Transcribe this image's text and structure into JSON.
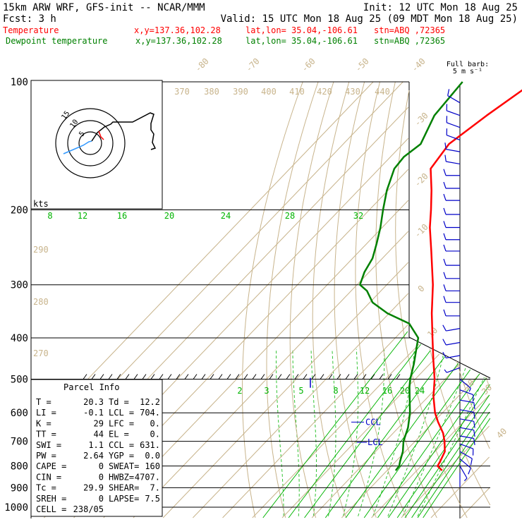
{
  "header": {
    "model": "15km ARW WRF, GFS-init  -- NCAR/MMM",
    "init": "Init: 12 UTC Mon 18 Aug 25",
    "fcst_label": "Fcst:   3 h",
    "valid": "Valid: 15 UTC Mon 18 Aug 25 (09 MDT Mon 18 Aug 25)",
    "temp_line": {
      "name": "Temperature",
      "xy": "x,y=137.36,102.28",
      "latlon": "lat,lon= 35.04,-106.61",
      "stn": "stn=ABQ ,72365"
    },
    "dew_line": {
      "name": "Dewpoint temperature",
      "xy": "x,y=137.36,102.28",
      "latlon": "lat,lon= 35.04,-106.61",
      "stn": "stn=ABQ ,72365"
    }
  },
  "barb_legend": {
    "title": "Full barb:",
    "value": "5 m s⁻¹"
  },
  "hodograph": {
    "units": "kts",
    "ring_labels": [
      "15",
      "10",
      "5"
    ]
  },
  "parcel_info": {
    "title": "Parcel Info",
    "rows": [
      [
        "T    =",
        "20.3",
        "Td =",
        "12.2"
      ],
      [
        "LI   =",
        "-0.1",
        "LCL =",
        "704."
      ],
      [
        "K    =",
        "29",
        "LFC =",
        "0."
      ],
      [
        "TT   =",
        "44",
        "EL  =",
        "0."
      ],
      [
        "SWI  =",
        "1.1",
        "CCL =",
        "631."
      ],
      [
        "PW   =",
        "2.64",
        "YGP =",
        "0.0"
      ],
      [
        "CAPE =",
        "0",
        "SWEAT=",
        "160"
      ],
      [
        "CIN  =",
        "0",
        "HWBZ=",
        "4707."
      ],
      [
        "Tc   =",
        "29.9",
        "SHEAR=",
        "7."
      ],
      [
        "SREH =",
        "0",
        "LAPSE=",
        "7.5"
      ],
      [
        "CELL =",
        "238/05",
        "",
        ""
      ]
    ]
  },
  "colors": {
    "temperature": "#ff0000",
    "dewpoint": "#008000",
    "isotherm": "#c8b48c",
    "mixing_ratio": "#00b400",
    "wind": "#0000c8",
    "grid": "#000000"
  },
  "chart_data": {
    "type": "line",
    "title": "",
    "ylabel": "",
    "xlabel": "",
    "y_scale": "log-pressure",
    "pressure_levels": [
      100,
      200,
      300,
      400,
      500,
      600,
      700,
      800,
      900,
      1000
    ],
    "isotherm_labels": [
      "-80",
      "-70",
      "-60",
      "-50",
      "-40",
      "-30",
      "-20",
      "-10",
      "0",
      "10",
      "20",
      "30",
      "40"
    ],
    "theta_labels_top": [
      "370",
      "380",
      "390",
      "400",
      "410",
      "420",
      "430",
      "440"
    ],
    "theta_labels_left": [
      "290",
      "280",
      "270"
    ],
    "mixing_ratio_labels_200": [
      "8",
      "12",
      "16",
      "20",
      "24",
      "28",
      "32"
    ],
    "mixing_ratio_labels_550": [
      "2",
      "3",
      "5",
      "8",
      "12",
      "16",
      "20",
      "24"
    ],
    "level_labels": [
      "CCL",
      "LCL"
    ],
    "series": [
      {
        "name": "Temperature",
        "p": [
          820,
          800,
          780,
          740,
          700,
          670,
          630,
          600,
          550,
          500,
          450,
          400,
          350,
          300,
          250,
          220,
          200,
          180,
          160,
          140,
          120,
          100
        ],
        "t": [
          28.5,
          25.5,
          24.9,
          23.3,
          19.9,
          16.8,
          11.4,
          7.5,
          1.8,
          -3.5,
          -10.2,
          -17.5,
          -25.7,
          -34.5,
          -45.9,
          -54.0,
          -59.3,
          -65.4,
          -72.7,
          -74.5,
          -71.0,
          -66.0
        ]
      },
      {
        "name": "Dewpoint temperature",
        "p": [
          820,
          800,
          780,
          740,
          700,
          650,
          600,
          550,
          520,
          500,
          460,
          420,
          400,
          370,
          350,
          330,
          310,
          300,
          280,
          260,
          240,
          220,
          200,
          180,
          160,
          150,
          140,
          120,
          100
        ],
        "td": [
          12.9,
          12.6,
          11.4,
          9.2,
          6.1,
          3.2,
          -0.9,
          -6.2,
          -9.6,
          -11.7,
          -15.4,
          -19.9,
          -22.3,
          -30.0,
          -40.6,
          -49.1,
          -54.7,
          -59.0,
          -61.6,
          -63.3,
          -66.7,
          -70.6,
          -75.4,
          -80.4,
          -84.9,
          -85.5,
          -84.0,
          -88.6,
          -90.0
        ]
      }
    ],
    "wind_barbs": [
      {
        "p": 830,
        "dir": 180,
        "speed_ms": 2
      },
      {
        "p": 800,
        "dir": 150,
        "speed_ms": 3
      },
      {
        "p": 770,
        "dir": 130,
        "speed_ms": 5
      },
      {
        "p": 740,
        "dir": 120,
        "speed_ms": 5
      },
      {
        "p": 710,
        "dir": 110,
        "speed_ms": 5
      },
      {
        "p": 680,
        "dir": 100,
        "speed_ms": 5
      },
      {
        "p": 650,
        "dir": 100,
        "speed_ms": 5
      },
      {
        "p": 620,
        "dir": 100,
        "speed_ms": 5
      },
      {
        "p": 590,
        "dir": 100,
        "speed_ms": 5
      },
      {
        "p": 560,
        "dir": 100,
        "speed_ms": 5
      },
      {
        "p": 530,
        "dir": 110,
        "speed_ms": 5
      },
      {
        "p": 500,
        "dir": 130,
        "speed_ms": 3
      },
      {
        "p": 470,
        "dir": 250,
        "speed_ms": 3
      },
      {
        "p": 440,
        "dir": 260,
        "speed_ms": 5
      },
      {
        "p": 410,
        "dir": 260,
        "speed_ms": 5
      },
      {
        "p": 380,
        "dir": 260,
        "speed_ms": 5
      },
      {
        "p": 355,
        "dir": 270,
        "speed_ms": 5
      },
      {
        "p": 330,
        "dir": 270,
        "speed_ms": 5
      },
      {
        "p": 310,
        "dir": 270,
        "speed_ms": 5
      },
      {
        "p": 290,
        "dir": 270,
        "speed_ms": 5
      },
      {
        "p": 270,
        "dir": 270,
        "speed_ms": 5
      },
      {
        "p": 250,
        "dir": 270,
        "speed_ms": 5
      },
      {
        "p": 235,
        "dir": 270,
        "speed_ms": 5
      },
      {
        "p": 220,
        "dir": 270,
        "speed_ms": 5
      },
      {
        "p": 205,
        "dir": 270,
        "speed_ms": 5
      },
      {
        "p": 190,
        "dir": 270,
        "speed_ms": 5
      },
      {
        "p": 178,
        "dir": 270,
        "speed_ms": 5
      },
      {
        "p": 166,
        "dir": 270,
        "speed_ms": 5
      },
      {
        "p": 156,
        "dir": 280,
        "speed_ms": 5
      },
      {
        "p": 146,
        "dir": 280,
        "speed_ms": 5
      },
      {
        "p": 137,
        "dir": 290,
        "speed_ms": 5
      },
      {
        "p": 128,
        "dir": 290,
        "speed_ms": 5
      },
      {
        "p": 120,
        "dir": 290,
        "speed_ms": 5
      },
      {
        "p": 112,
        "dir": 300,
        "speed_ms": 5
      }
    ]
  }
}
